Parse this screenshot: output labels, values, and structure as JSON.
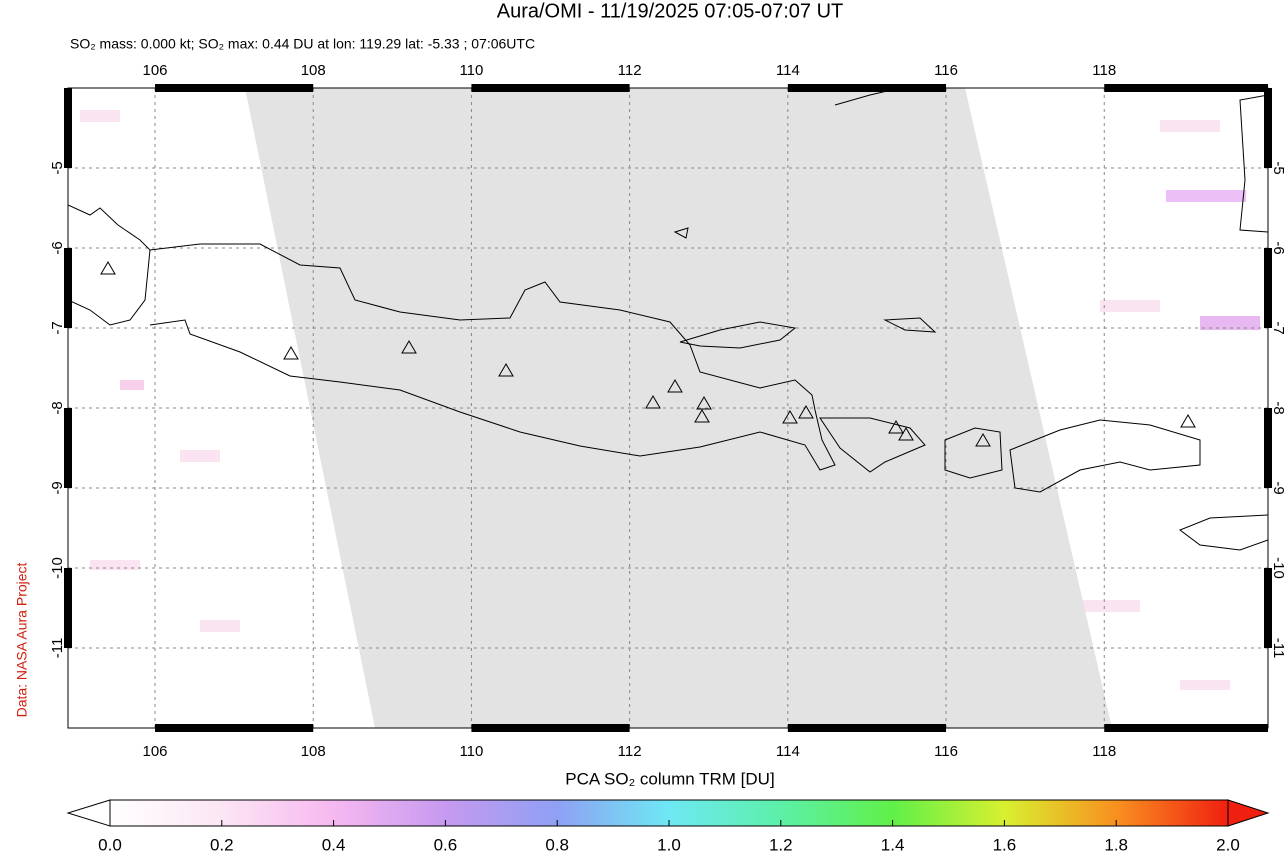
{
  "chart_data": {
    "type": "map",
    "title": "Aura/OMI - 11/19/2025 07:05-07:07 UT",
    "subtitle": "SO₂ mass: 0.000 kt; SO₂ max: 0.44 DU at lon: 119.29 lat: -5.33 ; 07:06UTC",
    "xlim": [
      104.9,
      120.07
    ],
    "xticks": [
      106,
      108,
      110,
      112,
      114,
      116,
      118
    ],
    "ylim": [
      -12,
      -4
    ],
    "yticks": [
      -5,
      -6,
      -7,
      -8,
      -9,
      -10,
      -11
    ],
    "grid": true,
    "side_label": "Data: NASA Aura Project",
    "colorbar": {
      "label": "PCA SO₂ column TRM [DU]",
      "lim": [
        0,
        2
      ],
      "ticks": [
        {
          "value": 0,
          "label": "0.0"
        },
        {
          "value": 0.2,
          "label": "0.2"
        },
        {
          "value": 0.4,
          "label": "0.4"
        },
        {
          "value": 0.6,
          "label": "0.6"
        },
        {
          "value": 0.8,
          "label": "0.8"
        },
        {
          "value": 1,
          "label": "1.0"
        },
        {
          "value": 1.2,
          "label": "1.2"
        },
        {
          "value": 1.4,
          "label": "1.4"
        },
        {
          "value": 1.6,
          "label": "1.6"
        },
        {
          "value": 1.8,
          "label": "1.8"
        },
        {
          "value": 2,
          "label": "2.0"
        }
      ]
    }
  }
}
